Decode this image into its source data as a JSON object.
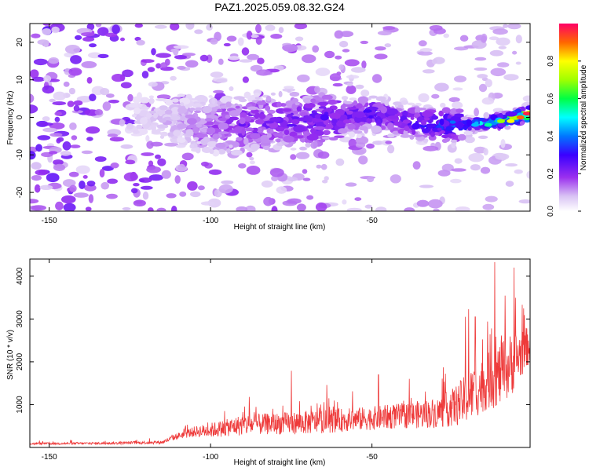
{
  "figure": {
    "title": "PAZ1.2025.059.08.32.G24"
  },
  "chart_data": [
    {
      "type": "heatmap",
      "xlabel": "Height of straight line (km)",
      "ylabel": "Frequency (Hz)",
      "xlim": [
        -156,
        -1
      ],
      "ylim": [
        -25,
        25
      ],
      "xticks": [
        -150,
        -100,
        -50
      ],
      "yticks": [
        -20,
        -10,
        0,
        10,
        20
      ],
      "colorbar": {
        "label": "Normalized spectral amplitude",
        "range": [
          0,
          1
        ],
        "ticks": [
          0.0,
          0.2,
          0.4,
          0.6,
          0.8
        ]
      },
      "ridge": {
        "x": [
          -156,
          -140,
          -120,
          -110,
          -100,
          -90,
          -80,
          -70,
          -60,
          -50,
          -40,
          -30,
          -20,
          -10,
          -1
        ],
        "y": [
          0,
          0,
          0,
          -1,
          -2,
          -2,
          -1,
          -1,
          0,
          1,
          -1,
          -2,
          -2,
          -1,
          1
        ],
        "amplitude": [
          0.05,
          0.06,
          0.08,
          0.12,
          0.18,
          0.25,
          0.25,
          0.28,
          0.3,
          0.32,
          0.3,
          0.38,
          0.45,
          0.65,
          0.95
        ]
      }
    },
    {
      "type": "line",
      "xlabel": "Height of straight line (km)",
      "ylabel": "SNR (10 * v/v)",
      "xlim": [
        -156,
        -1
      ],
      "ylim": [
        0,
        4400
      ],
      "xticks": [
        -150,
        -100,
        -50
      ],
      "yticks": [
        1000,
        2000,
        3000,
        4000
      ],
      "color": "#ee3a3a",
      "envelope": {
        "x": [
          -156,
          -130,
          -115,
          -110,
          -105,
          -100,
          -95,
          -90,
          -80,
          -70,
          -60,
          -50,
          -40,
          -30,
          -25,
          -22,
          -20,
          -15,
          -10,
          -7,
          -5,
          -3,
          -1
        ],
        "base": [
          80,
          90,
          110,
          250,
          330,
          350,
          400,
          450,
          480,
          500,
          550,
          600,
          650,
          700,
          800,
          900,
          1000,
          1300,
          1500,
          1700,
          1900,
          2100,
          2300
        ],
        "spread": [
          50,
          60,
          80,
          150,
          250,
          350,
          400,
          500,
          500,
          550,
          550,
          550,
          600,
          700,
          900,
          1100,
          1200,
          1300,
          1500,
          1500,
          1300,
          1000,
          900
        ]
      },
      "peaks": [
        {
          "x": -88,
          "y": 1180
        },
        {
          "x": -75,
          "y": 1790
        },
        {
          "x": -64,
          "y": 1460
        },
        {
          "x": -48,
          "y": 1700
        },
        {
          "x": -21,
          "y": 3050
        },
        {
          "x": -20,
          "y": 3230
        },
        {
          "x": -18,
          "y": 3050
        },
        {
          "x": -13,
          "y": 2780
        },
        {
          "x": -12,
          "y": 4330
        },
        {
          "x": -6,
          "y": 4200
        },
        {
          "x": -3,
          "y": 3250
        },
        {
          "x": -1,
          "y": 2700
        }
      ]
    }
  ]
}
